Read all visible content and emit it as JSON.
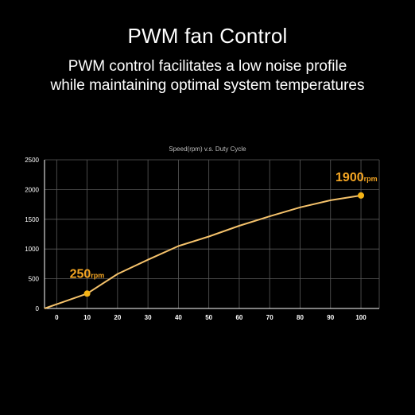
{
  "header": {
    "title": "PWM fan Control",
    "subtitle_line1": "PWM control facilitates a low noise profile",
    "subtitle_line2": "while maintaining optimal system temperatures"
  },
  "colors": {
    "background": "#000000",
    "grid": "#5a5a5a",
    "line": "#f5c26b",
    "marker": "#f5b416",
    "annotation": "#f5a623",
    "text": "#ffffff"
  },
  "chart_data": {
    "type": "line",
    "title": "Speed(rpm) v.s. Duty Cycle",
    "xlabel": "",
    "ylabel": "",
    "xlim": [
      -4,
      106
    ],
    "ylim": [
      0,
      2500
    ],
    "xticks": [
      0,
      10,
      20,
      30,
      40,
      50,
      60,
      70,
      80,
      90,
      100
    ],
    "yticks": [
      0,
      500,
      1000,
      1500,
      2000,
      2500
    ],
    "grid": true,
    "series": [
      {
        "x": [
          -4,
          10,
          20,
          30,
          40,
          50,
          60,
          70,
          80,
          90,
          100
        ],
        "y": [
          0,
          250,
          580,
          820,
          1050,
          1210,
          1390,
          1550,
          1700,
          1820,
          1900
        ]
      }
    ],
    "markers": [
      {
        "x": 10,
        "y": 250
      },
      {
        "x": 100,
        "y": 1900
      }
    ],
    "annotations": [
      {
        "value": "250",
        "unit": "rpm",
        "x": 10,
        "y": 250
      },
      {
        "value": "1900",
        "unit": "rpm",
        "x": 100,
        "y": 1900
      }
    ]
  }
}
